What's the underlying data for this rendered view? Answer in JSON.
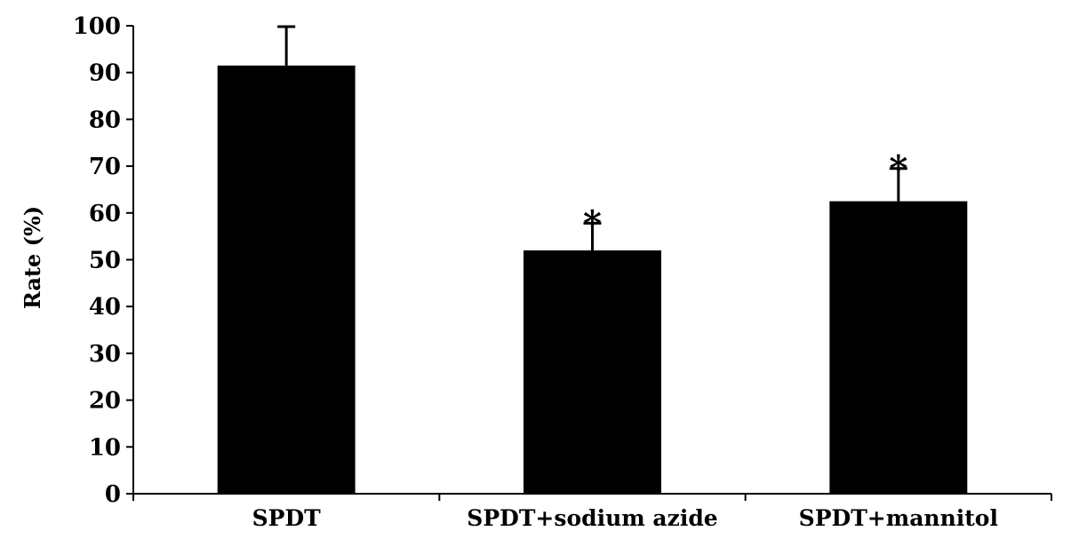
{
  "chart_data": {
    "type": "bar",
    "title": "",
    "xlabel": "",
    "ylabel": "Rate (%)",
    "categories": [
      "SPDT",
      "SPDT+sodium azide",
      "SPDT+mannitol"
    ],
    "values": [
      91.5,
      52,
      62.5
    ],
    "error_plus": [
      8.3,
      5.8,
      7
    ],
    "annotations": [
      "",
      "*",
      "*"
    ],
    "ylim": [
      0,
      100
    ],
    "yticks": [
      0,
      10,
      20,
      30,
      40,
      50,
      60,
      70,
      80,
      90,
      100
    ],
    "grid": false,
    "legend": "none",
    "bar_color": "#000000"
  }
}
